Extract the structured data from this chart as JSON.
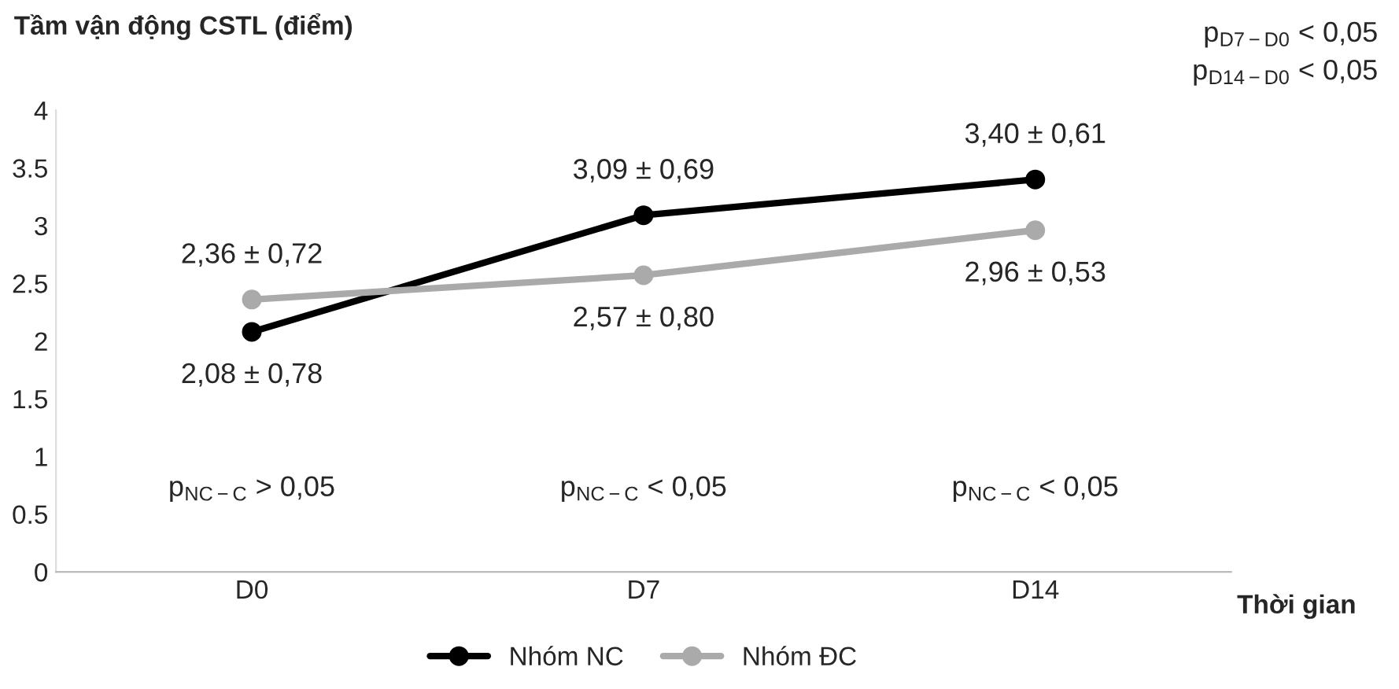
{
  "chart_data": {
    "type": "line",
    "ylabel": "Tầm vận động CSTL (điểm)",
    "xlabel": "Thời gian",
    "categories": [
      "D0",
      "D7",
      "D14"
    ],
    "series": [
      {
        "name": "Nhóm NC",
        "color": "#000000",
        "values": [
          2.08,
          3.09,
          3.4
        ],
        "value_labels": [
          "2,08 ± 0,78",
          "3,09 ± 0,69",
          "3,40 ± 0,61"
        ]
      },
      {
        "name": "Nhóm ĐC",
        "color": "#aaaaaa",
        "values": [
          2.36,
          2.57,
          2.96
        ],
        "value_labels": [
          "2,36 ± 0,72",
          "2,57 ± 0,80",
          "2,96 ± 0,53"
        ]
      }
    ],
    "ylim": [
      0,
      4
    ],
    "yticks": [
      {
        "value": 0,
        "label": "0"
      },
      {
        "value": 0.5,
        "label": "0.5"
      },
      {
        "value": 1,
        "label": "1"
      },
      {
        "value": 1.5,
        "label": "1.5"
      },
      {
        "value": 2,
        "label": "2"
      },
      {
        "value": 2.5,
        "label": "2.5"
      },
      {
        "value": 3,
        "label": "3"
      },
      {
        "value": 3.5,
        "label": "3.5"
      },
      {
        "value": 4,
        "label": "4"
      }
    ],
    "annotations": [
      "p$_{NC−C}$ > 0,05",
      "p$_{NC−C}$ < 0,05",
      "p$_{NC−C}$ < 0,05",
      "p$_{D7−D0}$ < 0,05",
      "p$_{D14−D0}$ < 0,05"
    ],
    "marker": "circle",
    "line_style": "solid",
    "grid": false,
    "legend": "bottom"
  }
}
